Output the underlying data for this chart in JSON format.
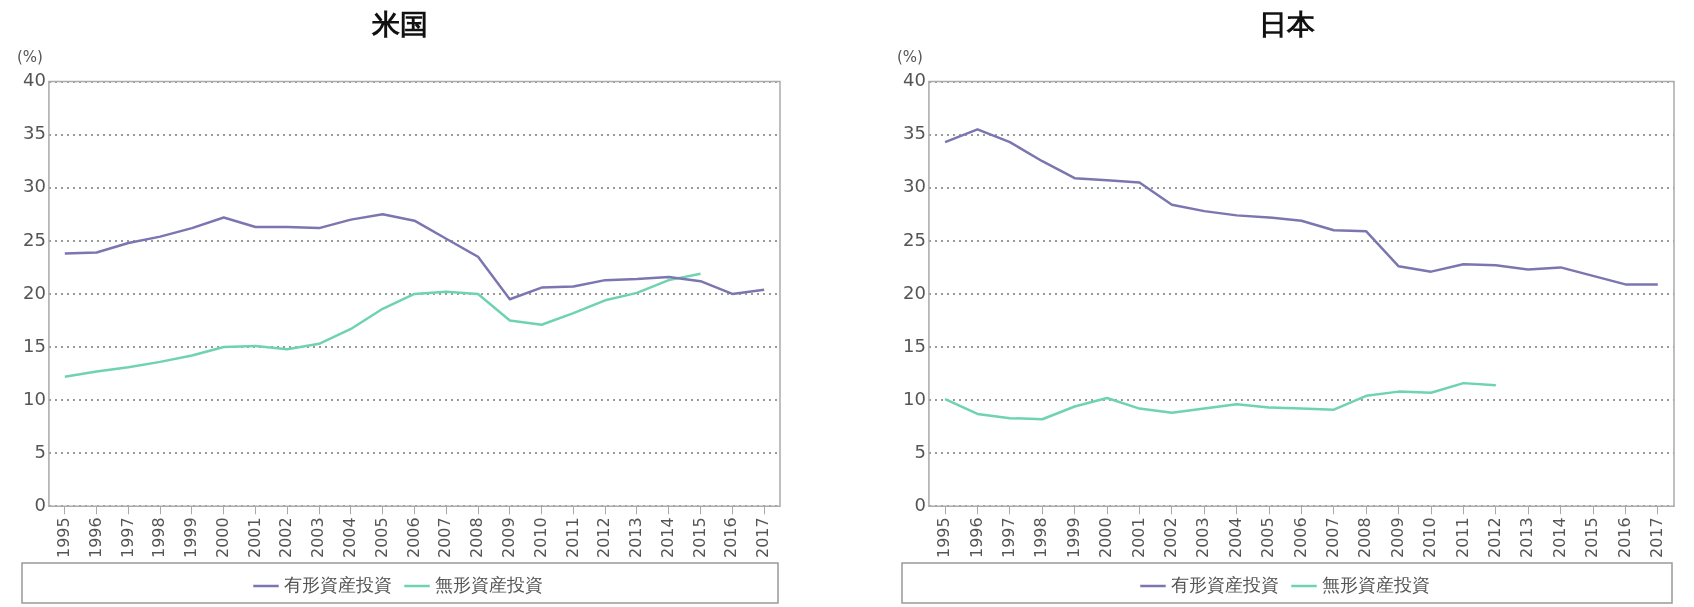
{
  "chart_data": [
    {
      "type": "line",
      "title": "米国",
      "ylabel": "(%)",
      "categories": [
        "1995",
        "1996",
        "1997",
        "1998",
        "1999",
        "2000",
        "2001",
        "2002",
        "2003",
        "2004",
        "2005",
        "2006",
        "2007",
        "2008",
        "2009",
        "2010",
        "2011",
        "2012",
        "2013",
        "2014",
        "2015",
        "2016",
        "2017"
      ],
      "series": [
        {
          "name": "有形資産投資",
          "color": "#7b76b0",
          "values": [
            23.8,
            23.9,
            24.8,
            25.4,
            26.2,
            27.2,
            26.3,
            26.3,
            26.2,
            27.0,
            27.5,
            26.9,
            25.2,
            23.5,
            19.5,
            20.6,
            20.7,
            21.3,
            21.4,
            21.6,
            21.2,
            20.0,
            20.4
          ]
        },
        {
          "name": "無形資産投資",
          "color": "#6fd3b0",
          "values": [
            12.2,
            12.7,
            13.1,
            13.6,
            14.2,
            15.0,
            15.1,
            14.8,
            15.3,
            16.7,
            18.6,
            20.0,
            20.2,
            20.0,
            17.5,
            17.1,
            18.2,
            19.4,
            20.1,
            21.3,
            21.9,
            null,
            null
          ]
        }
      ],
      "ylim": [
        0,
        40
      ],
      "yticks": [
        0,
        5,
        10,
        15,
        20,
        25,
        30,
        35,
        40
      ],
      "grid": "y",
      "legend": "bottom",
      "marker": "none",
      "line_style": "solid"
    },
    {
      "type": "line",
      "title": "日本",
      "ylabel": "(%)",
      "categories": [
        "1995",
        "1996",
        "1997",
        "1998",
        "1999",
        "2000",
        "2001",
        "2002",
        "2003",
        "2004",
        "2005",
        "2006",
        "2007",
        "2008",
        "2009",
        "2010",
        "2011",
        "2012",
        "2013",
        "2014",
        "2015",
        "2016",
        "2017"
      ],
      "series": [
        {
          "name": "有形資産投資",
          "color": "#7b76b0",
          "values": [
            34.3,
            35.5,
            34.3,
            32.5,
            30.9,
            30.7,
            30.5,
            28.4,
            27.8,
            27.4,
            27.2,
            26.9,
            26.0,
            25.9,
            22.6,
            22.1,
            22.8,
            22.7,
            22.3,
            22.5,
            21.7,
            20.9,
            20.9
          ]
        },
        {
          "name": "無形資産投資",
          "color": "#6fd3b0",
          "values": [
            10.1,
            8.7,
            8.3,
            8.2,
            9.4,
            10.2,
            9.2,
            8.8,
            9.2,
            9.6,
            9.3,
            9.2,
            9.1,
            10.4,
            10.8,
            10.7,
            11.6,
            11.4,
            null,
            null,
            null,
            null,
            null
          ]
        }
      ],
      "ylim": [
        0,
        40
      ],
      "yticks": [
        0,
        5,
        10,
        15,
        20,
        25,
        30,
        35,
        40
      ],
      "grid": "y",
      "legend": "bottom",
      "marker": "none",
      "line_style": "solid"
    }
  ]
}
